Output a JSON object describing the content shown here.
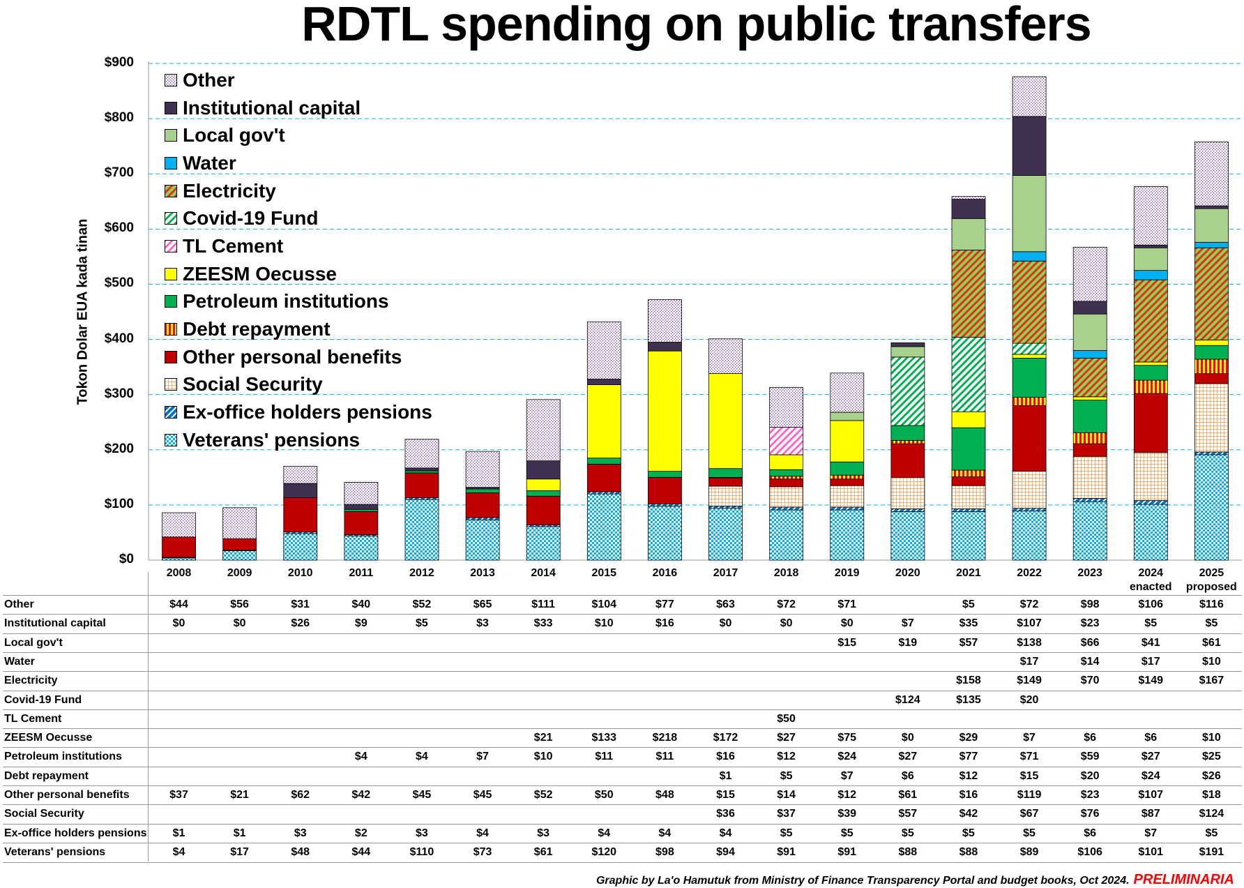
{
  "chart_data": {
    "type": "bar",
    "stacked": true,
    "title": "RDTL spending on public transfers",
    "ylabel": "Tokon Dolar EUA kada tinan",
    "xlabel": "",
    "ylim": [
      0,
      900
    ],
    "yticks": [
      0,
      100,
      200,
      300,
      400,
      500,
      600,
      700,
      800,
      900
    ],
    "ytick_labels": [
      "$0",
      "$100",
      "$200",
      "$300",
      "$400",
      "$500",
      "$600",
      "$700",
      "$800",
      "$900"
    ],
    "grid": true,
    "legend_position": "top-left",
    "categories": [
      "2008",
      "2009",
      "2010",
      "2011",
      "2012",
      "2013",
      "2014",
      "2015",
      "2016",
      "2017",
      "2018",
      "2019",
      "2020",
      "2021",
      "2022",
      "2023",
      "2024 enacted",
      "2025 proposed"
    ],
    "series": [
      {
        "name": "Veterans' pensions",
        "color": "#00b0f0",
        "values": [
          4,
          17,
          48,
          44,
          110,
          73,
          61,
          120,
          98,
          94,
          91,
          91,
          88,
          88,
          89,
          106,
          101,
          191
        ]
      },
      {
        "name": "Ex-office holders pensions",
        "color": "#0070c0",
        "values": [
          1,
          1,
          3,
          2,
          3,
          4,
          3,
          4,
          4,
          4,
          5,
          5,
          5,
          5,
          5,
          6,
          7,
          5
        ]
      },
      {
        "name": "Social Security",
        "color": "#f79646",
        "values": [
          null,
          null,
          null,
          null,
          null,
          null,
          null,
          null,
          null,
          36,
          37,
          39,
          57,
          42,
          67,
          76,
          87,
          124
        ]
      },
      {
        "name": "Other personal benefits",
        "color": "#c00000",
        "values": [
          37,
          21,
          62,
          42,
          45,
          45,
          52,
          50,
          48,
          15,
          14,
          12,
          61,
          16,
          119,
          23,
          107,
          18
        ]
      },
      {
        "name": "Debt repayment",
        "color": "#ff0000",
        "values": [
          null,
          null,
          null,
          null,
          null,
          null,
          null,
          null,
          null,
          1,
          5,
          7,
          6,
          12,
          15,
          20,
          24,
          26
        ]
      },
      {
        "name": "Petroleum institutions",
        "color": "#00b050",
        "values": [
          null,
          null,
          null,
          4,
          4,
          7,
          10,
          11,
          11,
          16,
          12,
          24,
          27,
          77,
          71,
          59,
          27,
          25
        ]
      },
      {
        "name": "ZEESM Oecusse",
        "color": "#ffff00",
        "values": [
          null,
          null,
          null,
          null,
          null,
          null,
          21,
          133,
          218,
          172,
          27,
          75,
          0,
          29,
          7,
          6,
          6,
          10
        ]
      },
      {
        "name": "TL Cement",
        "color": "#ff66cc",
        "values": [
          null,
          null,
          null,
          null,
          null,
          null,
          null,
          null,
          null,
          null,
          50,
          null,
          null,
          null,
          null,
          null,
          null,
          null
        ]
      },
      {
        "name": "Covid-19 Fund",
        "color": "#00b050",
        "values": [
          null,
          null,
          null,
          null,
          null,
          null,
          null,
          null,
          null,
          null,
          null,
          null,
          124,
          135,
          20,
          null,
          null,
          null
        ]
      },
      {
        "name": "Electricity",
        "color": "#92d050",
        "values": [
          null,
          null,
          null,
          null,
          null,
          null,
          null,
          null,
          null,
          null,
          null,
          null,
          null,
          158,
          149,
          70,
          149,
          167
        ]
      },
      {
        "name": "Water",
        "color": "#00b0f0",
        "values": [
          null,
          null,
          null,
          null,
          null,
          null,
          null,
          null,
          null,
          null,
          null,
          null,
          null,
          null,
          17,
          14,
          17,
          10
        ]
      },
      {
        "name": "Local gov't",
        "color": "#a9d18e",
        "values": [
          null,
          null,
          null,
          null,
          null,
          null,
          null,
          null,
          null,
          null,
          null,
          15,
          19,
          57,
          138,
          66,
          41,
          61
        ]
      },
      {
        "name": "Institutional capital",
        "color": "#403151",
        "values": [
          0,
          0,
          26,
          9,
          5,
          3,
          33,
          10,
          16,
          0,
          0,
          0,
          7,
          35,
          107,
          23,
          5,
          5
        ]
      },
      {
        "name": "Other",
        "color": "#7030a0",
        "values": [
          44,
          56,
          31,
          40,
          52,
          65,
          111,
          104,
          77,
          63,
          72,
          71,
          null,
          5,
          72,
          98,
          106,
          116
        ]
      }
    ]
  },
  "footer": {
    "credit": "Graphic by La'o Hamutuk from Ministry of Finance Transparency Portal and budget books, Oct 2024.",
    "status": "PRELIMINARIA",
    "status_color": "#ff0000"
  }
}
